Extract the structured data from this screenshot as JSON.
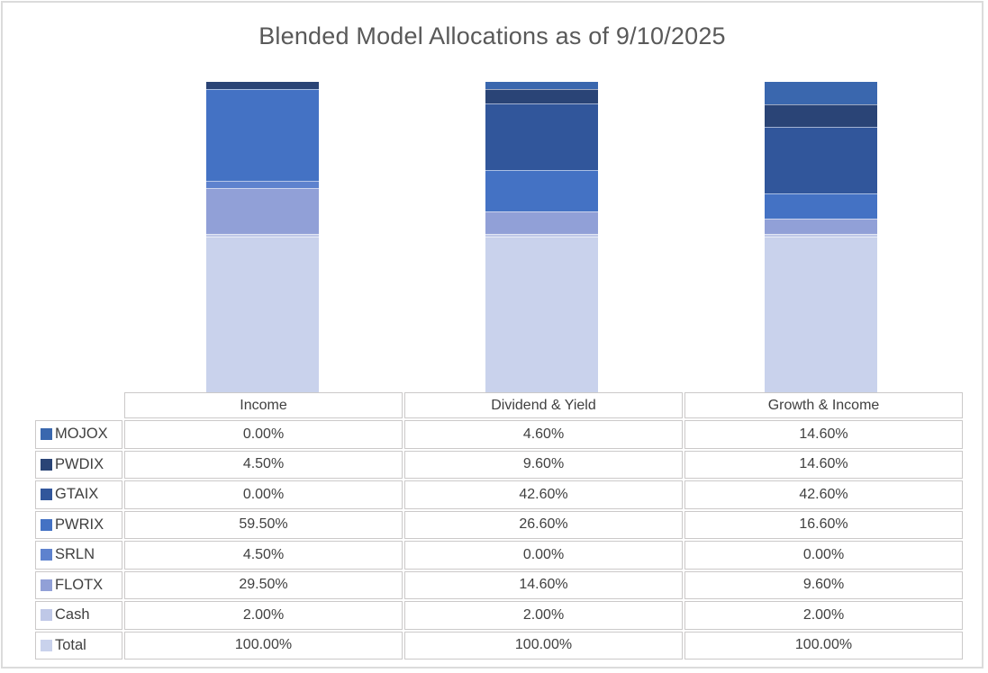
{
  "chart_data": {
    "type": "bar",
    "variant": "stacked-column",
    "title": "Blended Model Allocations as of 9/10/2025",
    "categories": [
      "Income",
      "Dividend & Yield",
      "Growth & Income"
    ],
    "series": [
      {
        "name": "MOJOX",
        "color": "#3A67AE",
        "values": [
          0.0,
          4.6,
          14.6
        ],
        "labels": [
          "0.00%",
          "4.60%",
          "14.60%"
        ]
      },
      {
        "name": "PWDIX",
        "color": "#2A4476",
        "values": [
          4.5,
          9.6,
          14.6
        ],
        "labels": [
          "4.50%",
          "9.60%",
          "14.60%"
        ]
      },
      {
        "name": "GTAIX",
        "color": "#31569B",
        "values": [
          0.0,
          42.6,
          42.6
        ],
        "labels": [
          "0.00%",
          "42.60%",
          "42.60%"
        ]
      },
      {
        "name": "PWRIX",
        "color": "#4472C4",
        "values": [
          59.5,
          26.6,
          16.6
        ],
        "labels": [
          "59.50%",
          "26.60%",
          "16.60%"
        ]
      },
      {
        "name": "SRLN",
        "color": "#5E82CE",
        "values": [
          4.5,
          0.0,
          0.0
        ],
        "labels": [
          "4.50%",
          "0.00%",
          "0.00%"
        ]
      },
      {
        "name": "FLOTX",
        "color": "#91A0D7",
        "values": [
          29.5,
          14.6,
          9.6
        ],
        "labels": [
          "29.50%",
          "14.60%",
          "9.60%"
        ]
      },
      {
        "name": "Cash",
        "color": "#BFC8E7",
        "values": [
          2.0,
          2.0,
          2.0
        ],
        "labels": [
          "2.00%",
          "2.00%",
          "2.00%"
        ]
      },
      {
        "name": "Total",
        "color": "#C9D2EC",
        "values": [
          100.0,
          100.0,
          100.0
        ],
        "labels": [
          "100.00%",
          "100.00%",
          "100.00%"
        ]
      }
    ],
    "stack_order_top_to_bottom": [
      "MOJOX",
      "PWDIX",
      "GTAIX",
      "PWRIX",
      "SRLN",
      "FLOTX",
      "Cash",
      "Total"
    ],
    "stack_total": 200,
    "grid": false,
    "legend_position": "data-table-left-column",
    "colors": {
      "title_text": "#595959",
      "table_text": "#404040",
      "table_border": "#cbc9c9",
      "frame_border": "#dbdbdb"
    }
  }
}
